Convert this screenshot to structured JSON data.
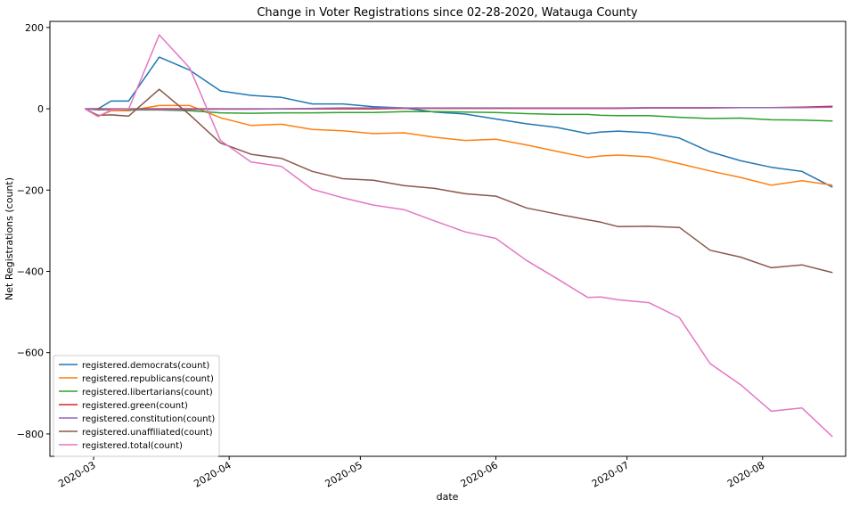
{
  "chart_data": {
    "type": "line",
    "title": "Change in Voter Registrations since 02-28-2020, Watauga County",
    "xlabel": "date",
    "ylabel": "Net Registrations (count)",
    "xlim": [
      "2020-02-20",
      "2020-08-20"
    ],
    "ylim": [
      -855,
      215
    ],
    "x_ticks": [
      "2020-03",
      "2020-04",
      "2020-05",
      "2020-06",
      "2020-07",
      "2020-08"
    ],
    "y_ticks": [
      200,
      0,
      -200,
      -400,
      -600,
      -800
    ],
    "grid": false,
    "legend_position": "lower-left",
    "x": [
      "2020-02-28",
      "2020-03-02",
      "2020-03-05",
      "2020-03-09",
      "2020-03-16",
      "2020-03-23",
      "2020-03-30",
      "2020-04-06",
      "2020-04-13",
      "2020-04-20",
      "2020-04-27",
      "2020-05-04",
      "2020-05-11",
      "2020-05-18",
      "2020-05-25",
      "2020-06-01",
      "2020-06-08",
      "2020-06-15",
      "2020-06-22",
      "2020-06-25",
      "2020-06-29",
      "2020-07-06",
      "2020-07-13",
      "2020-07-20",
      "2020-07-27",
      "2020-08-03",
      "2020-08-10",
      "2020-08-17"
    ],
    "series": [
      {
        "name": "registered.democrats(count)",
        "color": "#1f77b4",
        "values": [
          0,
          0,
          19,
          19,
          127,
          95,
          44,
          33,
          28,
          12,
          12,
          5,
          2,
          -8,
          -13,
          -25,
          -37,
          -46,
          -61,
          -57,
          -55,
          -59,
          -72,
          -106,
          -128,
          -144,
          -154,
          -193
        ]
      },
      {
        "name": "registered.republicans(count)",
        "color": "#ff7f0e",
        "values": [
          0,
          -19,
          -5,
          -5,
          8,
          8,
          -22,
          -41,
          -38,
          -51,
          -54,
          -61,
          -59,
          -70,
          -78,
          -75,
          -89,
          -105,
          -120,
          -116,
          -114,
          -118,
          -135,
          -153,
          -169,
          -188,
          -177,
          -188
        ]
      },
      {
        "name": "registered.libertarians(count)",
        "color": "#2ca02c",
        "values": [
          0,
          -3,
          -2,
          -3,
          -3,
          -5,
          -10,
          -11,
          -10,
          -10,
          -9,
          -9,
          -7,
          -7,
          -8,
          -9,
          -12,
          -14,
          -14,
          -16,
          -17,
          -17,
          -21,
          -24,
          -23,
          -27,
          -28,
          -30
        ]
      },
      {
        "name": "registered.green(count)",
        "color": "#d62728",
        "values": [
          0,
          0,
          0,
          0,
          0,
          0,
          0,
          0,
          0,
          0,
          0,
          0,
          1,
          1,
          1,
          1,
          1,
          1,
          1,
          1,
          1,
          2,
          2,
          2,
          3,
          3,
          4,
          6
        ]
      },
      {
        "name": "registered.constitution(count)",
        "color": "#9467bd",
        "values": [
          0,
          -2,
          -1,
          -1,
          -2,
          -2,
          -1,
          -1,
          0,
          1,
          2,
          2,
          2,
          2,
          2,
          2,
          2,
          2,
          2,
          2,
          2,
          3,
          3,
          3,
          3,
          3,
          3,
          4
        ]
      },
      {
        "name": "registered.unaffiliated(count)",
        "color": "#8c564b",
        "values": [
          0,
          -16,
          -15,
          -18,
          48,
          -15,
          -84,
          -112,
          -122,
          -154,
          -172,
          -176,
          -189,
          -196,
          -209,
          -215,
          -244,
          -259,
          -273,
          -279,
          -290,
          -289,
          -292,
          -348,
          -365,
          -391,
          -384,
          -403
        ]
      },
      {
        "name": "registered.total(count)",
        "color": "#e377c2",
        "values": [
          0,
          -19,
          -3,
          -1,
          182,
          100,
          -78,
          -131,
          -142,
          -198,
          -219,
          -237,
          -248,
          -276,
          -303,
          -319,
          -373,
          -418,
          -464,
          -463,
          -470,
          -477,
          -514,
          -627,
          -679,
          -744,
          -736,
          -807
        ]
      }
    ]
  }
}
